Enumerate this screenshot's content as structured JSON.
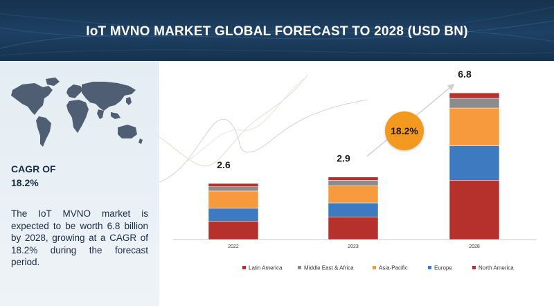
{
  "title": "IoT MVNO MARKET GLOBAL FORECAST TO 2028 (USD BN)",
  "cagr_label": "CAGR OF",
  "cagr_value": "18.2%",
  "summary": "The IoT MVNO market is expected to be worth 6.8 billion by 2028, growing at a CAGR of 18.2% during the forecast period.",
  "growth_badge": "18.2%",
  "icons": {
    "map": "world-map-icon"
  },
  "chart_data": {
    "type": "bar",
    "stacked": true,
    "categories": [
      "2022",
      "2023",
      "2028"
    ],
    "totals": [
      2.6,
      2.9,
      6.8
    ],
    "series": [
      {
        "name": "North America",
        "color": "#b7312c",
        "values": [
          0.85,
          1.05,
          2.75
        ]
      },
      {
        "name": "Europe",
        "color": "#3d7abf",
        "values": [
          0.6,
          0.65,
          1.6
        ]
      },
      {
        "name": "Asia-Pacific",
        "color": "#f79a3e",
        "values": [
          0.8,
          0.8,
          1.75
        ]
      },
      {
        "name": "Middle East & Africa",
        "color": "#8c8c8c",
        "values": [
          0.2,
          0.25,
          0.45
        ]
      },
      {
        "name": "Latin America",
        "color": "#b7312c",
        "values": [
          0.15,
          0.15,
          0.25
        ]
      }
    ],
    "legend_order": [
      "Latin America",
      "Middle East & Africa",
      "Asia-Pacific",
      "Europe",
      "North America"
    ],
    "legend_position": "bottom",
    "grid": false,
    "ylim": [
      0,
      7
    ],
    "title": "",
    "xlabel": "",
    "ylabel": ""
  }
}
